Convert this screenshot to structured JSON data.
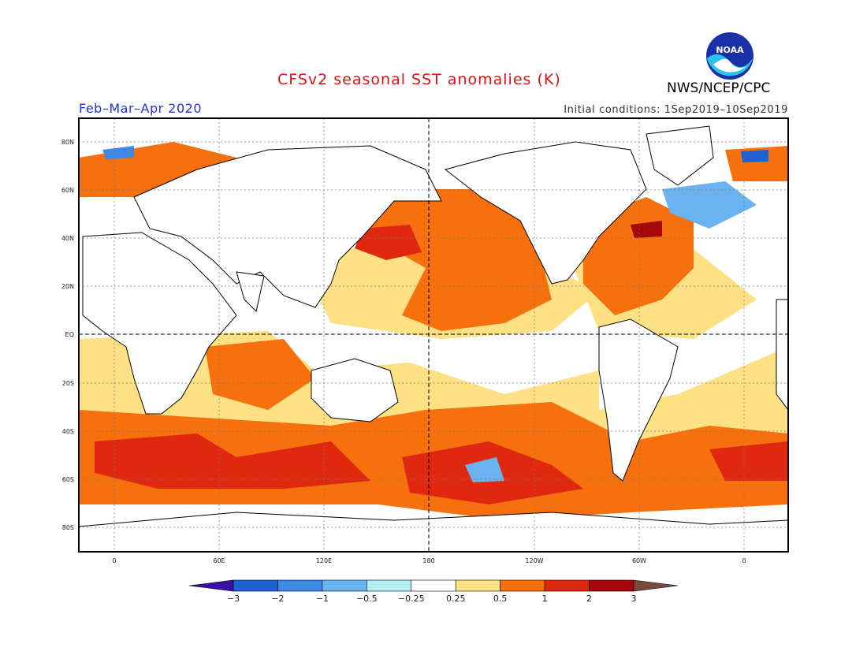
{
  "header": {
    "title": "CFSv2 seasonal SST anomalies (K)",
    "period": "Feb–Mar–Apr 2020",
    "agency": "NWS/NCEP/CPC",
    "initial_conditions": "Initial conditions: 1Sep2019–10Sep2019",
    "logo_text": "NOAA"
  },
  "axes": {
    "lat_labels": [
      "80N",
      "60N",
      "40N",
      "20N",
      "EQ",
      "20S",
      "40S",
      "60S",
      "80S"
    ],
    "lon_labels": [
      "0",
      "60E",
      "120E",
      "180",
      "120W",
      "60W",
      "0"
    ]
  },
  "colorbar": {
    "labels": [
      "−3",
      "−2",
      "−1",
      "−0.5",
      "−0.25",
      "0.25",
      "0.5",
      "1",
      "2",
      "3"
    ],
    "colors": [
      "#3a0fa8",
      "#1f5fd0",
      "#3f88e6",
      "#6bb2f0",
      "#b2eef2",
      "#ffffff",
      "#fde184",
      "#f6700d",
      "#e02810",
      "#a40808",
      "#7a4b3a"
    ]
  }
}
